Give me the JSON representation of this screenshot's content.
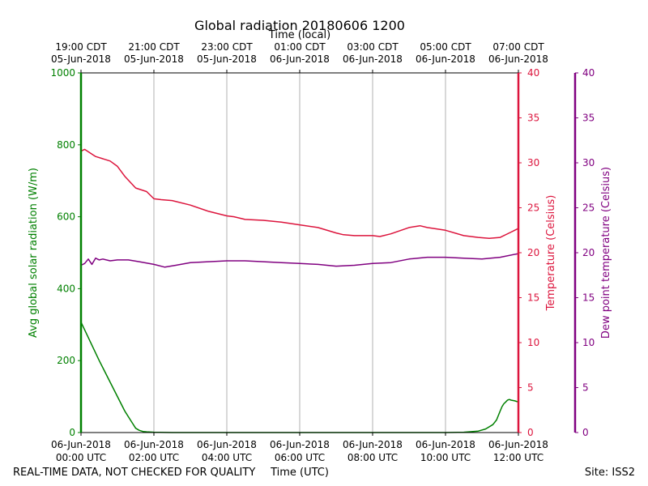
{
  "chart_data": {
    "type": "line",
    "title": "Global radiation 20180606 1200",
    "top_xlabel": "Time (local)",
    "xlabel": "Time (UTC)",
    "footer_left": "REAL-TIME DATA, NOT CHECKED FOR QUALITY",
    "footer_right": "Site: ISS2",
    "x_range_hours_utc": [
      0,
      12
    ],
    "bottom_ticks": [
      {
        "h": 0,
        "line1": "06-Jun-2018",
        "line2": "00:00 UTC"
      },
      {
        "h": 2,
        "line1": "06-Jun-2018",
        "line2": "02:00 UTC"
      },
      {
        "h": 4,
        "line1": "06-Jun-2018",
        "line2": "04:00 UTC"
      },
      {
        "h": 6,
        "line1": "06-Jun-2018",
        "line2": "06:00 UTC"
      },
      {
        "h": 8,
        "line1": "06-Jun-2018",
        "line2": "08:00 UTC"
      },
      {
        "h": 10,
        "line1": "06-Jun-2018",
        "line2": "10:00 UTC"
      },
      {
        "h": 12,
        "line1": "06-Jun-2018",
        "line2": "12:00 UTC"
      }
    ],
    "top_ticks": [
      {
        "h": 0,
        "line1": "19:00 CDT",
        "line2": "05-Jun-2018"
      },
      {
        "h": 2,
        "line1": "21:00 CDT",
        "line2": "05-Jun-2018"
      },
      {
        "h": 4,
        "line1": "23:00 CDT",
        "line2": "05-Jun-2018"
      },
      {
        "h": 6,
        "line1": "01:00 CDT",
        "line2": "06-Jun-2018"
      },
      {
        "h": 8,
        "line1": "03:00 CDT",
        "line2": "06-Jun-2018"
      },
      {
        "h": 10,
        "line1": "05:00 CDT",
        "line2": "06-Jun-2018"
      },
      {
        "h": 12,
        "line1": "07:00 CDT",
        "line2": "06-Jun-2018"
      }
    ],
    "grid_x": true,
    "axes": {
      "radiation": {
        "label": "Avg global solar radiation (W/m)",
        "ylim": [
          0,
          1000
        ],
        "ticks": [
          0,
          200,
          400,
          600,
          800,
          1000
        ],
        "color": "#008000"
      },
      "temperature": {
        "label": "Temperature (Celsius)",
        "ylim": [
          0,
          40
        ],
        "ticks": [
          0,
          5,
          10,
          15,
          20,
          25,
          30,
          35,
          40
        ],
        "color": "#dc143c"
      },
      "dewpoint": {
        "label": "Dew point temperature (Celsius)",
        "ylim": [
          0,
          40
        ],
        "ticks": [
          0,
          5,
          10,
          15,
          20,
          25,
          30,
          35,
          40
        ],
        "color": "#800080"
      }
    },
    "series": [
      {
        "name": "Avg global solar radiation (W/m)",
        "axis": "radiation",
        "color": "#008000",
        "x_hours": [
          0,
          0.5,
          1.0,
          1.2,
          1.4,
          1.5,
          1.6,
          1.7,
          1.8,
          2.0,
          2.5,
          3,
          4,
          6,
          8,
          10,
          10.5,
          10.9,
          11.1,
          11.3,
          11.4,
          11.5,
          11.55,
          11.6,
          11.65,
          11.7,
          11.75,
          11.8,
          11.9,
          12.0
        ],
        "values": [
          307,
          200,
          100,
          60,
          28,
          12,
          6,
          3,
          2,
          1,
          0,
          0,
          0,
          0,
          0,
          0,
          1,
          4,
          10,
          22,
          35,
          60,
          72,
          80,
          85,
          90,
          92,
          90,
          88,
          85
        ]
      },
      {
        "name": "Temperature (Celsius)",
        "axis": "temperature",
        "color": "#dc143c",
        "x_hours": [
          0,
          0.1,
          0.4,
          0.8,
          1.0,
          1.2,
          1.5,
          1.8,
          2.0,
          2.2,
          2.5,
          3,
          3.5,
          4,
          4.2,
          4.5,
          5,
          5.5,
          6,
          6.5,
          7,
          7.2,
          7.5,
          8,
          8.2,
          8.5,
          9,
          9.3,
          9.5,
          10,
          10.5,
          10.9,
          11.2,
          11.5,
          11.8,
          12.0
        ],
        "values": [
          31.3,
          31.5,
          30.7,
          30.2,
          29.6,
          28.5,
          27.2,
          26.8,
          26.0,
          25.9,
          25.8,
          25.3,
          24.6,
          24.1,
          24.0,
          23.7,
          23.6,
          23.4,
          23.1,
          22.8,
          22.2,
          22.0,
          21.9,
          21.9,
          21.8,
          22.1,
          22.8,
          23.0,
          22.8,
          22.5,
          21.9,
          21.7,
          21.6,
          21.7,
          22.3,
          22.7
        ]
      },
      {
        "name": "Dew point temperature (Celsius)",
        "axis": "dewpoint",
        "color": "#800080",
        "x_hours": [
          0,
          0.1,
          0.2,
          0.3,
          0.4,
          0.5,
          0.6,
          0.8,
          1.0,
          1.3,
          1.6,
          2.0,
          2.3,
          2.6,
          3.0,
          3.5,
          4.0,
          4.5,
          5.0,
          5.5,
          6.0,
          6.5,
          7.0,
          7.5,
          8.0,
          8.5,
          9.0,
          9.5,
          10.0,
          10.5,
          11.0,
          11.5,
          12.0
        ],
        "values": [
          18.6,
          18.8,
          19.3,
          18.7,
          19.4,
          19.2,
          19.3,
          19.1,
          19.2,
          19.2,
          19.0,
          18.7,
          18.4,
          18.6,
          18.9,
          19.0,
          19.1,
          19.1,
          19.0,
          18.9,
          18.8,
          18.7,
          18.5,
          18.6,
          18.8,
          18.9,
          19.3,
          19.5,
          19.5,
          19.4,
          19.3,
          19.5,
          19.9
        ]
      }
    ]
  }
}
